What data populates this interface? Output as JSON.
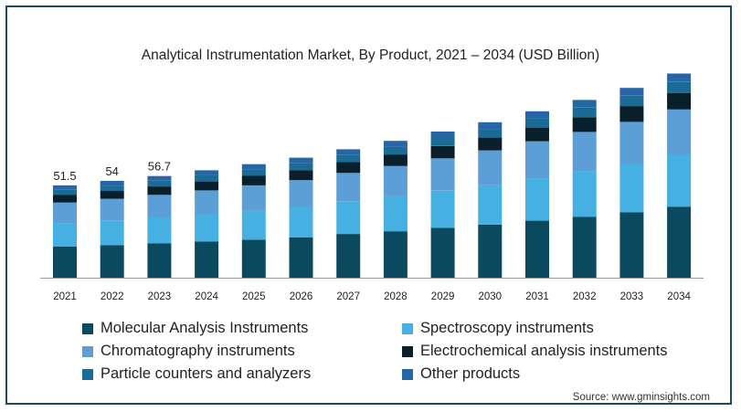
{
  "chart_data": {
    "type": "bar",
    "stacked": true,
    "title": "Analytical Instrumentation Market, By Product, 2021 – 2034 (USD Billion)",
    "xlabel": "",
    "ylabel": "",
    "categories": [
      "2021",
      "2022",
      "2023",
      "2024",
      "2025",
      "2026",
      "2027",
      "2028",
      "2029",
      "2030",
      "2031",
      "2032",
      "2033",
      "2034"
    ],
    "ylim": [
      0,
      110
    ],
    "grid": false,
    "legend_position": "bottom",
    "data_labels": [
      {
        "category": "2021",
        "text": "51.5"
      },
      {
        "category": "2022",
        "text": "54"
      },
      {
        "category": "2023",
        "text": "56.7"
      }
    ],
    "series": [
      {
        "name": "Molecular Analysis Instruments",
        "color": "#0b4a5e",
        "values": [
          17.3,
          18.2,
          19.1,
          20.1,
          21.2,
          22.4,
          24.4,
          25.9,
          27.8,
          29.6,
          31.8,
          34.0,
          36.4,
          39.6
        ]
      },
      {
        "name": "Spectroscopy instruments",
        "color": "#45b0e1",
        "values": [
          13.2,
          13.8,
          14.5,
          15.3,
          16.2,
          17.1,
          18.3,
          19.5,
          20.7,
          22.0,
          23.6,
          25.4,
          27.0,
          28.9
        ]
      },
      {
        "name": "Chromatography instruments",
        "color": "#5c9ed6",
        "values": [
          11.4,
          12.0,
          12.6,
          13.3,
          14.1,
          14.9,
          15.7,
          16.9,
          18.1,
          19.3,
          20.6,
          21.9,
          23.5,
          25.3
        ]
      },
      {
        "name": "Electrochemical analysis instruments",
        "color": "#0a1f2c",
        "values": [
          4.2,
          4.4,
          4.7,
          5.0,
          5.3,
          5.6,
          6.0,
          6.4,
          6.8,
          7.2,
          7.7,
          8.2,
          8.8,
          9.2
        ]
      },
      {
        "name": "Particle counters and analyzers",
        "color": "#1a6b95",
        "values": [
          2.9,
          3.0,
          3.2,
          3.4,
          3.6,
          3.8,
          4.0,
          4.2,
          4.5,
          4.8,
          5.1,
          5.4,
          5.7,
          6.1
        ]
      },
      {
        "name": "Other products",
        "color": "#2766a6",
        "values": [
          2.5,
          2.6,
          2.6,
          2.8,
          2.9,
          3.1,
          3.2,
          3.4,
          3.6,
          3.8,
          4.0,
          4.2,
          4.4,
          4.7
        ]
      }
    ]
  },
  "source": "Source: www.gminsights.com"
}
